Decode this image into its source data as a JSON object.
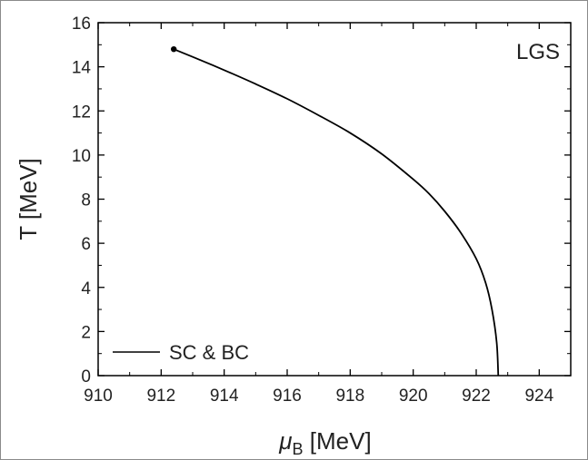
{
  "chart_data": {
    "type": "line",
    "title": "",
    "annotation": "LGS",
    "xlabel": {
      "symbol": "μ",
      "subscript": "B",
      "unit": " [MeV]"
    },
    "ylabel": "T [MeV]",
    "xlim": [
      910,
      925
    ],
    "ylim": [
      0,
      16
    ],
    "xticks": [
      910,
      912,
      914,
      916,
      918,
      920,
      922,
      924
    ],
    "yticks": [
      0,
      2,
      4,
      6,
      8,
      10,
      12,
      14,
      16
    ],
    "grid": false,
    "legend_placement": "bottom-left",
    "series": [
      {
        "name": "SC & BC",
        "color": "#000000",
        "marker_at_start": true,
        "points": [
          [
            912.4,
            14.8
          ],
          [
            913.0,
            14.45
          ],
          [
            914.0,
            13.85
          ],
          [
            915.0,
            13.22
          ],
          [
            916.0,
            12.55
          ],
          [
            917.0,
            11.8
          ],
          [
            918.0,
            11.0
          ],
          [
            919.0,
            10.05
          ],
          [
            920.0,
            8.9
          ],
          [
            920.5,
            8.25
          ],
          [
            921.0,
            7.45
          ],
          [
            921.5,
            6.5
          ],
          [
            922.0,
            5.3
          ],
          [
            922.3,
            4.2
          ],
          [
            922.5,
            3.0
          ],
          [
            922.65,
            1.5
          ],
          [
            922.7,
            0.0
          ]
        ]
      }
    ]
  }
}
